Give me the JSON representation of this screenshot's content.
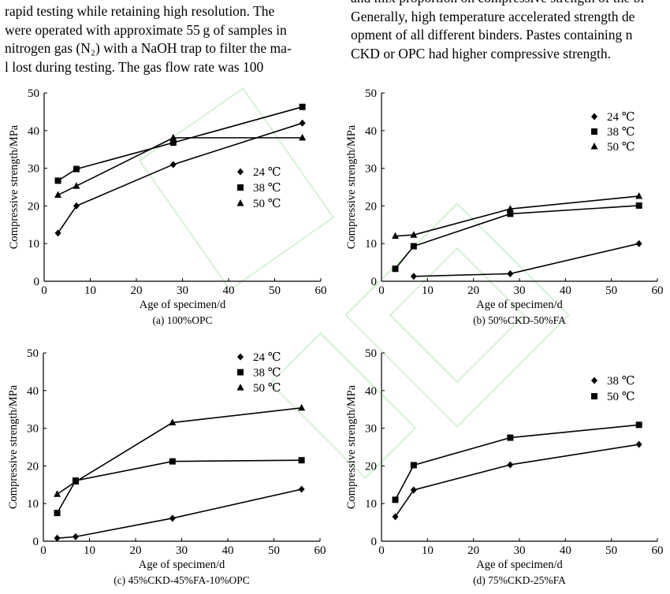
{
  "body_text": {
    "left_lines": [
      "rapid testing while retaining high resolution. The",
      "were operated with approximate 55 g of samples in",
      "nitrogen gas (N₂) with a NaOH trap to filter the ma-",
      "l lost during testing. The gas flow rate was 100"
    ],
    "right_lines": [
      "and mix proportion on compressive strength of the bi",
      "Generally, high temperature accelerated strength de",
      "opment of all different binders. Pastes containing n",
      "CKD or OPC had higher compressive strength."
    ]
  },
  "chart_data": [
    {
      "type": "line",
      "caption": "(a) 100%OPC",
      "xlabel": "Age of specimen/d",
      "ylabel": "Compressive strength/MPa",
      "xlim": [
        0,
        60
      ],
      "ylim": [
        0,
        50
      ],
      "xticks": [
        0,
        10,
        20,
        30,
        40,
        50,
        60
      ],
      "yticks": [
        0,
        10,
        20,
        30,
        40,
        50
      ],
      "grid": false,
      "legend": "center-right",
      "series": [
        {
          "name": "24 ℃",
          "marker": "diamond",
          "x": [
            3,
            7,
            28,
            56
          ],
          "y": [
            12.8,
            20.0,
            31.0,
            42.0
          ]
        },
        {
          "name": "38 ℃",
          "marker": "square",
          "x": [
            3,
            7,
            28,
            56
          ],
          "y": [
            26.7,
            29.8,
            36.8,
            46.3
          ]
        },
        {
          "name": "50 ℃",
          "marker": "triangle",
          "x": [
            3,
            7,
            28,
            56
          ],
          "y": [
            22.9,
            25.3,
            38.1,
            38.1
          ]
        }
      ]
    },
    {
      "type": "line",
      "caption": "(b) 50%CKD-50%FA",
      "xlabel": "Age of specimen/d",
      "ylabel": "Compressive strength/MPa",
      "xlim": [
        0,
        60
      ],
      "ylim": [
        0,
        50
      ],
      "xticks": [
        0,
        10,
        20,
        30,
        40,
        50,
        60
      ],
      "yticks": [
        0,
        10,
        20,
        30,
        40,
        50
      ],
      "grid": false,
      "legend": "top-right",
      "series": [
        {
          "name": "24 ℃",
          "marker": "diamond",
          "x": [
            7,
            28,
            56
          ],
          "y": [
            1.3,
            2.0,
            10.0
          ]
        },
        {
          "name": "38 ℃",
          "marker": "square",
          "x": [
            3,
            7,
            28,
            56
          ],
          "y": [
            3.3,
            9.3,
            17.9,
            20.1
          ]
        },
        {
          "name": "50 ℃",
          "marker": "triangle",
          "x": [
            3,
            7,
            28,
            56
          ],
          "y": [
            12.0,
            12.3,
            19.2,
            22.6
          ]
        }
      ]
    },
    {
      "type": "line",
      "caption": "(c) 45%CKD-45%FA-10%OPC",
      "xlabel": "Age of specimen/d",
      "ylabel": "Compressive strength/MPa",
      "xlim": [
        0,
        60
      ],
      "ylim": [
        0,
        50
      ],
      "xticks": [
        0,
        10,
        20,
        30,
        40,
        50,
        60
      ],
      "yticks": [
        0,
        10,
        20,
        30,
        40,
        50
      ],
      "grid": false,
      "legend": "top-right",
      "series": [
        {
          "name": "24 ℃",
          "marker": "diamond",
          "x": [
            3,
            7,
            28,
            56
          ],
          "y": [
            0.8,
            1.2,
            6.1,
            13.8
          ]
        },
        {
          "name": "38 ℃",
          "marker": "square",
          "x": [
            3,
            7,
            28,
            56
          ],
          "y": [
            7.5,
            16.1,
            21.2,
            21.5
          ]
        },
        {
          "name": "50 ℃",
          "marker": "triangle",
          "x": [
            3,
            7,
            28,
            56
          ],
          "y": [
            12.5,
            15.8,
            31.5,
            35.4
          ]
        }
      ]
    },
    {
      "type": "line",
      "caption": "(d) 75%CKD-25%FA",
      "xlabel": "Age of specimen/d",
      "ylabel": "Compressive strength/MPa",
      "xlim": [
        0,
        60
      ],
      "ylim": [
        0,
        50
      ],
      "xticks": [
        0,
        10,
        20,
        30,
        40,
        50,
        60
      ],
      "yticks": [
        0,
        10,
        20,
        30,
        40,
        50
      ],
      "grid": false,
      "legend": "top-right",
      "series": [
        {
          "name": "38 ℃",
          "marker": "diamond",
          "x": [
            3,
            7,
            28,
            56
          ],
          "y": [
            6.5,
            13.6,
            20.3,
            25.7
          ]
        },
        {
          "name": "50 ℃",
          "marker": "square",
          "x": [
            3,
            7,
            28,
            56
          ],
          "y": [
            11.0,
            20.2,
            27.5,
            30.9
          ]
        }
      ]
    }
  ],
  "colors": {
    "ink": "#000000",
    "watermark": "#c8f0c8"
  }
}
